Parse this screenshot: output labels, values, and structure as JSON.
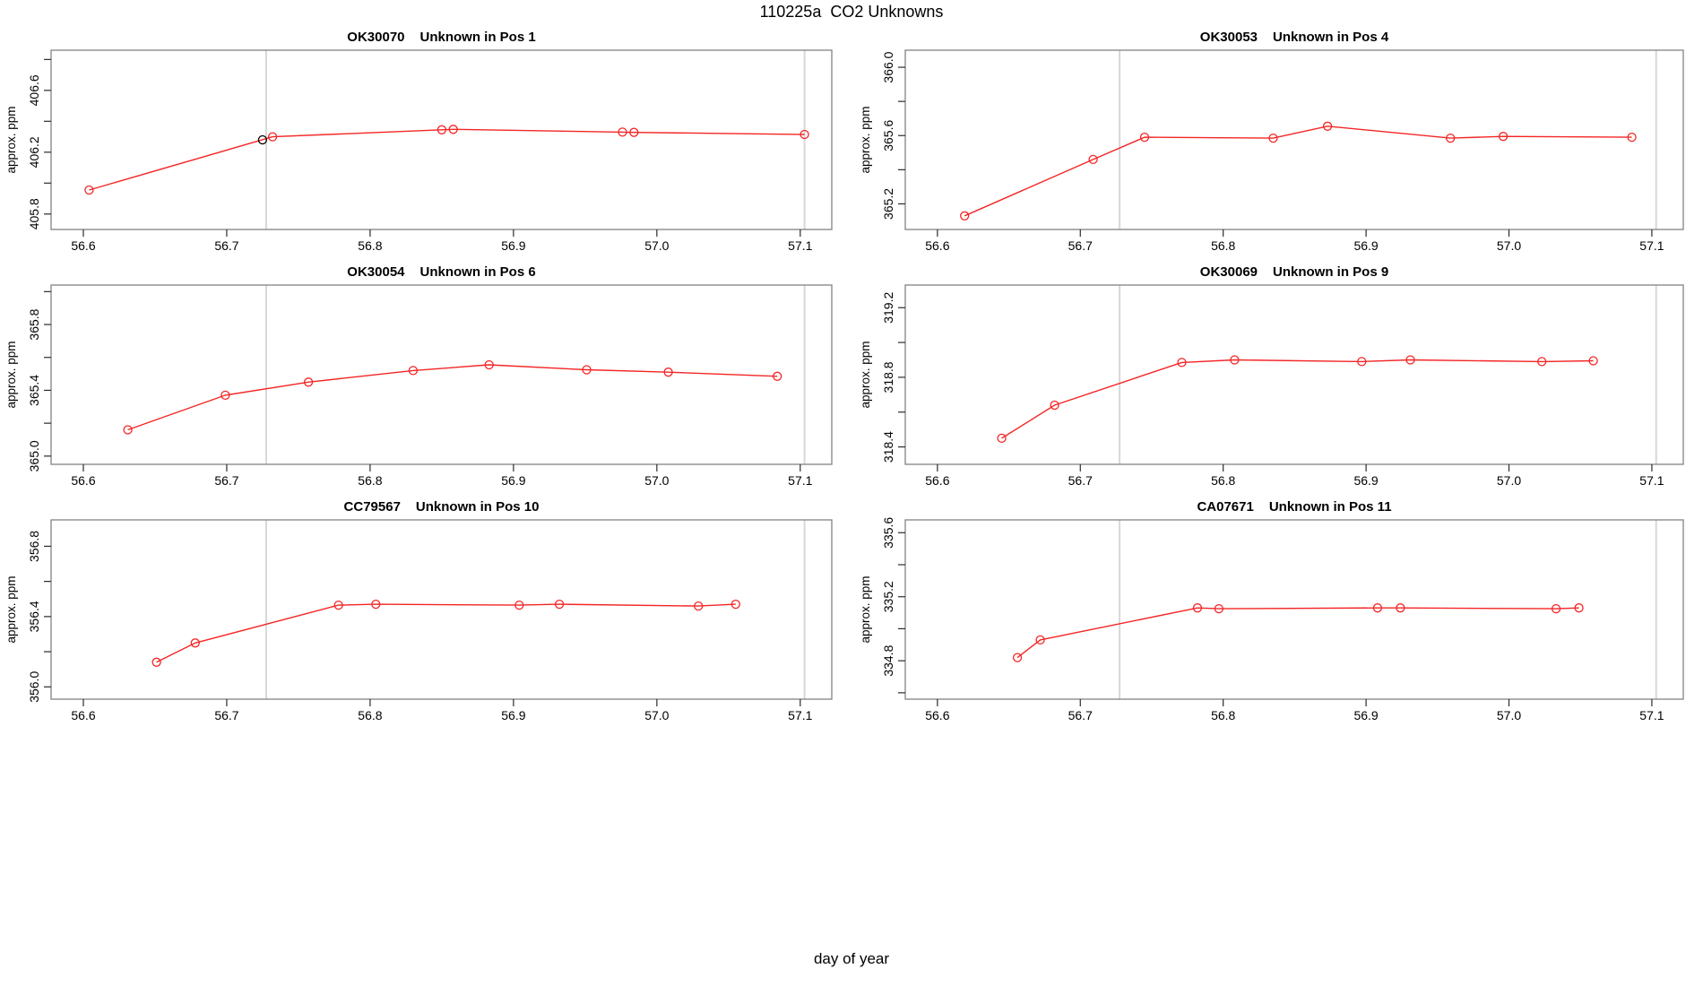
{
  "figure_title": "110225a  CO2 Unknowns",
  "x_axis_label": "day of year",
  "colors": {
    "series": "#f42525",
    "black_point": "#000000",
    "grid_line": "#d8d8d8",
    "box": "#828282",
    "tick": "#2b2b2b",
    "text": "#000000",
    "background": "#ffffff"
  },
  "x_tick_values": [
    56.6,
    56.7,
    56.8,
    56.9,
    57.0,
    57.1
  ],
  "x_tick_labels": [
    "56.6",
    "56.7",
    "56.8",
    "56.9",
    "57.0",
    "57.1"
  ],
  "chart_data": [
    {
      "type": "line",
      "sample_id": "OK30070",
      "title": "Unknown in Pos 1",
      "ylabel": "approx. ppm",
      "xlim": [
        56.5775,
        57.122
      ],
      "ylim": [
        405.7,
        406.86
      ],
      "y_ticks": [
        405.8,
        406.0,
        406.2,
        406.4,
        406.6,
        406.8
      ],
      "y_labels": [
        {
          "v": 405.8,
          "t": "405.8"
        },
        {
          "v": 406.2,
          "t": "406.2"
        },
        {
          "v": 406.6,
          "t": "406.6"
        }
      ],
      "vlines": [
        56.7275,
        57.103
      ],
      "points": [
        {
          "x": 56.604,
          "y": 405.955
        },
        {
          "x": 56.725,
          "y": 406.28,
          "color": "black"
        },
        {
          "x": 56.732,
          "y": 406.3
        },
        {
          "x": 56.85,
          "y": 406.345
        },
        {
          "x": 56.858,
          "y": 406.348
        },
        {
          "x": 56.976,
          "y": 406.33
        },
        {
          "x": 56.984,
          "y": 406.328
        },
        {
          "x": 57.103,
          "y": 406.315
        }
      ]
    },
    {
      "type": "line",
      "sample_id": "OK30053",
      "title": "Unknown in Pos 4",
      "ylabel": "approx. ppm",
      "xlim": [
        56.5775,
        57.122
      ],
      "ylim": [
        365.05,
        366.1
      ],
      "y_ticks": [
        365.2,
        365.4,
        365.6,
        365.8,
        366.0
      ],
      "y_labels": [
        {
          "v": 365.2,
          "t": "365.2"
        },
        {
          "v": 365.6,
          "t": "365.6"
        },
        {
          "v": 366.0,
          "t": "366.0"
        }
      ],
      "vlines": [
        56.7275,
        57.103
      ],
      "points": [
        {
          "x": 56.619,
          "y": 365.13
        },
        {
          "x": 56.709,
          "y": 365.46
        },
        {
          "x": 56.745,
          "y": 365.59
        },
        {
          "x": 56.835,
          "y": 365.585
        },
        {
          "x": 56.873,
          "y": 365.655
        },
        {
          "x": 56.959,
          "y": 365.585
        },
        {
          "x": 56.996,
          "y": 365.595
        },
        {
          "x": 57.086,
          "y": 365.59
        }
      ]
    },
    {
      "type": "line",
      "sample_id": "OK30054",
      "title": "Unknown in Pos 6",
      "ylabel": "approx. ppm",
      "xlim": [
        56.5775,
        57.122
      ],
      "ylim": [
        364.95,
        366.04
      ],
      "y_ticks": [
        365.0,
        365.2,
        365.4,
        365.6,
        365.8,
        366.0
      ],
      "y_labels": [
        {
          "v": 365.0,
          "t": "365.0"
        },
        {
          "v": 365.4,
          "t": "365.4"
        },
        {
          "v": 365.8,
          "t": "365.8"
        }
      ],
      "vlines": [
        56.7275,
        57.103
      ],
      "points": [
        {
          "x": 56.631,
          "y": 365.16
        },
        {
          "x": 56.699,
          "y": 365.37
        },
        {
          "x": 56.757,
          "y": 365.45
        },
        {
          "x": 56.83,
          "y": 365.52
        },
        {
          "x": 56.883,
          "y": 365.555
        },
        {
          "x": 56.951,
          "y": 365.525
        },
        {
          "x": 57.008,
          "y": 365.51
        },
        {
          "x": 57.084,
          "y": 365.485
        }
      ]
    },
    {
      "type": "line",
      "sample_id": "OK30069",
      "title": "Unknown in Pos 9",
      "ylabel": "approx. ppm",
      "xlim": [
        56.5775,
        57.122
      ],
      "ylim": [
        318.3,
        319.33
      ],
      "y_ticks": [
        318.4,
        318.6,
        318.8,
        319.0,
        319.2
      ],
      "y_labels": [
        {
          "v": 318.4,
          "t": "318.4"
        },
        {
          "v": 318.8,
          "t": "318.8"
        },
        {
          "v": 319.2,
          "t": "319.2"
        }
      ],
      "vlines": [
        56.7275,
        57.103
      ],
      "points": [
        {
          "x": 56.645,
          "y": 318.45
        },
        {
          "x": 56.682,
          "y": 318.64
        },
        {
          "x": 56.771,
          "y": 318.885
        },
        {
          "x": 56.808,
          "y": 318.9
        },
        {
          "x": 56.897,
          "y": 318.89
        },
        {
          "x": 56.931,
          "y": 318.9
        },
        {
          "x": 57.023,
          "y": 318.89
        },
        {
          "x": 57.059,
          "y": 318.895
        }
      ]
    },
    {
      "type": "line",
      "sample_id": "CC79567",
      "title": "Unknown in Pos 10",
      "ylabel": "approx. ppm",
      "xlim": [
        56.5775,
        57.122
      ],
      "ylim": [
        355.93,
        356.95
      ],
      "y_ticks": [
        356.0,
        356.2,
        356.4,
        356.6,
        356.8
      ],
      "y_labels": [
        {
          "v": 356.0,
          "t": "356.0"
        },
        {
          "v": 356.4,
          "t": "356.4"
        },
        {
          "v": 356.8,
          "t": "356.8"
        }
      ],
      "vlines": [
        56.7275,
        57.103
      ],
      "points": [
        {
          "x": 56.651,
          "y": 356.14
        },
        {
          "x": 56.678,
          "y": 356.25
        },
        {
          "x": 56.778,
          "y": 356.465
        },
        {
          "x": 56.804,
          "y": 356.47
        },
        {
          "x": 56.904,
          "y": 356.465
        },
        {
          "x": 56.932,
          "y": 356.47
        },
        {
          "x": 57.029,
          "y": 356.46
        },
        {
          "x": 57.055,
          "y": 356.47
        }
      ]
    },
    {
      "type": "line",
      "sample_id": "CA07671",
      "title": "Unknown in Pos 11",
      "ylabel": "approx. ppm",
      "xlim": [
        56.5775,
        57.122
      ],
      "ylim": [
        334.56,
        335.68
      ],
      "y_ticks": [
        334.6,
        334.8,
        335.0,
        335.2,
        335.4,
        335.6
      ],
      "y_labels": [
        {
          "v": 334.8,
          "t": "334.8"
        },
        {
          "v": 335.2,
          "t": "335.2"
        },
        {
          "v": 335.6,
          "t": "335.6"
        }
      ],
      "vlines": [
        56.7275,
        57.103
      ],
      "points": [
        {
          "x": 56.656,
          "y": 334.82
        },
        {
          "x": 56.672,
          "y": 334.93
        },
        {
          "x": 56.782,
          "y": 335.13
        },
        {
          "x": 56.797,
          "y": 335.125
        },
        {
          "x": 56.908,
          "y": 335.13
        },
        {
          "x": 56.924,
          "y": 335.13
        },
        {
          "x": 57.033,
          "y": 335.125
        },
        {
          "x": 57.049,
          "y": 335.13
        }
      ]
    }
  ]
}
